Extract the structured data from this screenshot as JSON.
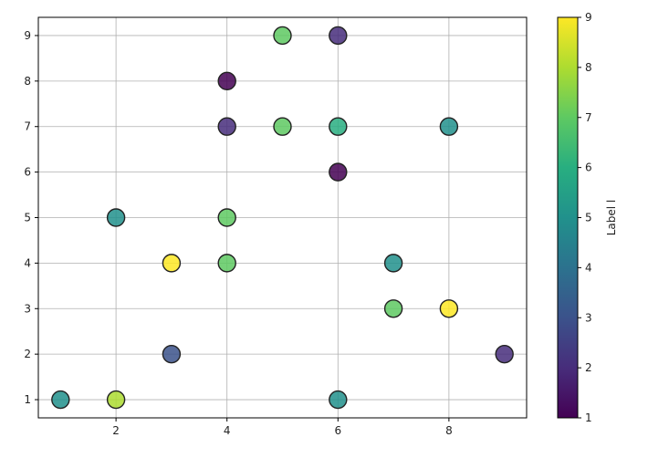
{
  "chart_data": {
    "type": "scatter",
    "title": "",
    "xlabel": "",
    "ylabel": "",
    "xlim": [
      0.6,
      9.4
    ],
    "ylim": [
      0.6,
      9.4
    ],
    "x_ticks": [
      2,
      4,
      6,
      8
    ],
    "y_ticks": [
      1,
      2,
      3,
      4,
      5,
      6,
      7,
      8,
      9
    ],
    "grid": true,
    "colormap": "viridis",
    "colorbar": {
      "label": "Label l",
      "min": 1,
      "max": 9,
      "ticks": [
        1,
        2,
        3,
        4,
        5,
        6,
        7,
        8,
        9
      ]
    },
    "points": [
      {
        "x": 1,
        "y": 1,
        "c": 5
      },
      {
        "x": 2,
        "y": 1,
        "c": 8
      },
      {
        "x": 6,
        "y": 1,
        "c": 5
      },
      {
        "x": 3,
        "y": 2,
        "c": 3
      },
      {
        "x": 9,
        "y": 2,
        "c": 2
      },
      {
        "x": 7,
        "y": 3,
        "c": 7
      },
      {
        "x": 8,
        "y": 3,
        "c": 9
      },
      {
        "x": 3,
        "y": 4,
        "c": 9
      },
      {
        "x": 4,
        "y": 4,
        "c": 7
      },
      {
        "x": 7,
        "y": 4,
        "c": 5
      },
      {
        "x": 2,
        "y": 5,
        "c": 5
      },
      {
        "x": 4,
        "y": 5,
        "c": 7
      },
      {
        "x": 6,
        "y": 6,
        "c": 1
      },
      {
        "x": 4,
        "y": 7,
        "c": 2
      },
      {
        "x": 5,
        "y": 7,
        "c": 7
      },
      {
        "x": 6,
        "y": 7,
        "c": 6
      },
      {
        "x": 8,
        "y": 7,
        "c": 5
      },
      {
        "x": 4,
        "y": 8,
        "c": 1
      },
      {
        "x": 5,
        "y": 9,
        "c": 7
      },
      {
        "x": 6,
        "y": 9,
        "c": 2
      }
    ]
  }
}
